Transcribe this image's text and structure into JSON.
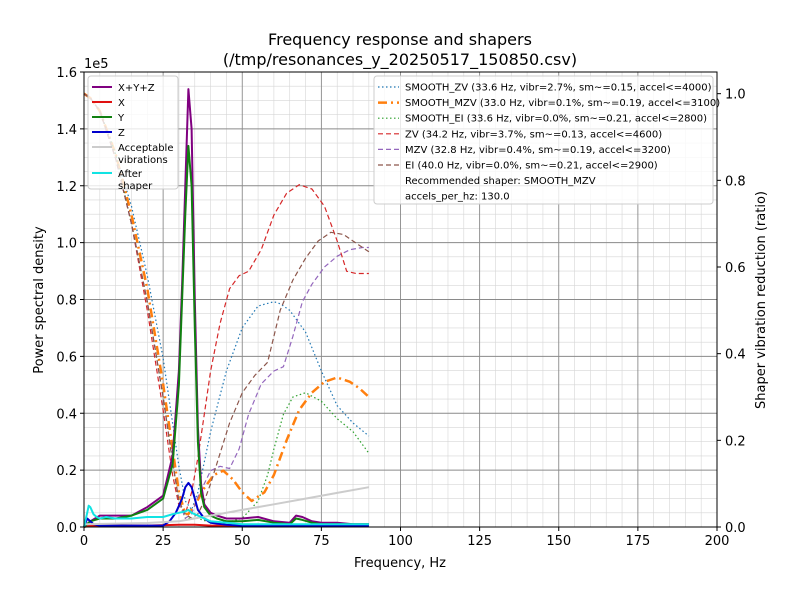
{
  "chart_data": {
    "type": "line",
    "title": "Frequency response and shapers",
    "subtitle": "(/tmp/resonances_y_20250517_150850.csv)",
    "xlabel": "Frequency, Hz",
    "ylabel_left": "Power spectral density",
    "ylabel_right": "Shaper vibration reduction (ratio)",
    "y_exponent_label": "1e5",
    "xlim": [
      0,
      200
    ],
    "ylim_left": [
      0,
      1.6
    ],
    "ylim_right": [
      0,
      1.05
    ],
    "x_ticks": [
      0,
      25,
      50,
      75,
      100,
      125,
      150,
      175,
      200
    ],
    "y_ticks_left": [
      "0.0",
      "0.2",
      "0.4",
      "0.6",
      "0.8",
      "1.0",
      "1.2",
      "1.4",
      "1.6"
    ],
    "y_ticks_right": [
      "0.0",
      "0.2",
      "0.4",
      "0.6",
      "0.8",
      "1.0"
    ],
    "grid": true,
    "legend_left_placement": "top-left",
    "legend_right_placement": "top-right",
    "psd_series": [
      {
        "name": "X+Y+Z",
        "color": "#800080",
        "width": 2,
        "x": [
          0,
          2,
          5,
          10,
          15,
          20,
          25,
          28,
          30,
          31,
          32,
          33.0,
          34,
          35,
          36,
          37,
          38,
          40,
          42,
          45,
          50,
          55,
          60,
          65,
          67,
          69,
          72,
          75,
          80,
          85,
          90
        ],
        "y": [
          0.0,
          0.02,
          0.04,
          0.04,
          0.04,
          0.07,
          0.11,
          0.25,
          0.55,
          0.85,
          1.2,
          1.54,
          1.4,
          0.8,
          0.35,
          0.15,
          0.08,
          0.05,
          0.04,
          0.03,
          0.03,
          0.035,
          0.02,
          0.015,
          0.04,
          0.035,
          0.02,
          0.015,
          0.015,
          0.01,
          0.01
        ]
      },
      {
        "name": "X",
        "color": "#e01010",
        "width": 2,
        "x": [
          0,
          2,
          5,
          10,
          20,
          30,
          35,
          40,
          50,
          60,
          70,
          80,
          90
        ],
        "y": [
          0.0,
          0.005,
          0.005,
          0.005,
          0.005,
          0.008,
          0.008,
          0.005,
          0.005,
          0.005,
          0.005,
          0.005,
          0.005
        ]
      },
      {
        "name": "Y",
        "color": "#108010",
        "width": 2,
        "x": [
          0,
          2,
          5,
          10,
          15,
          20,
          25,
          28,
          30,
          31,
          32,
          33.0,
          34,
          35,
          36,
          37,
          38,
          40,
          42,
          45,
          50,
          55,
          60,
          65,
          67,
          69,
          72,
          75,
          80,
          85,
          90
        ],
        "y": [
          0.0,
          0.02,
          0.03,
          0.03,
          0.04,
          0.06,
          0.1,
          0.22,
          0.5,
          0.8,
          1.1,
          1.34,
          1.2,
          0.7,
          0.3,
          0.12,
          0.07,
          0.04,
          0.03,
          0.02,
          0.02,
          0.025,
          0.015,
          0.01,
          0.03,
          0.025,
          0.015,
          0.01,
          0.01,
          0.01,
          0.01
        ]
      },
      {
        "name": "Z",
        "color": "#0000cc",
        "width": 2,
        "x": [
          0,
          1,
          2,
          3,
          5,
          10,
          20,
          25,
          27,
          29,
          31,
          32,
          33.0,
          34,
          35,
          36,
          38,
          40,
          45,
          50,
          60,
          70,
          80,
          90
        ],
        "y": [
          0.0,
          0.03,
          0.02,
          0.01,
          0.005,
          0.005,
          0.005,
          0.005,
          0.02,
          0.05,
          0.1,
          0.14,
          0.155,
          0.14,
          0.1,
          0.06,
          0.03,
          0.015,
          0.008,
          0.005,
          0.005,
          0.005,
          0.005,
          0.005
        ]
      },
      {
        "name": "Acceptable vibrations",
        "color": "#cccccc",
        "width": 2,
        "x": [
          0,
          10,
          20,
          30,
          40,
          50,
          60,
          70,
          80,
          90
        ],
        "y": [
          0.01,
          0.012,
          0.014,
          0.02,
          0.04,
          0.06,
          0.08,
          0.1,
          0.12,
          0.14
        ]
      },
      {
        "name": "After shaper",
        "color": "#11e3e3",
        "width": 2,
        "x": [
          0,
          1,
          1.5,
          2,
          3,
          4,
          5,
          7,
          10,
          15,
          20,
          25,
          28,
          30,
          32,
          33.0,
          34,
          36,
          40,
          45,
          50,
          60,
          70,
          80,
          90
        ],
        "y": [
          0.0,
          0.05,
          0.075,
          0.07,
          0.045,
          0.035,
          0.03,
          0.035,
          0.03,
          0.03,
          0.035,
          0.035,
          0.045,
          0.05,
          0.055,
          0.06,
          0.05,
          0.04,
          0.02,
          0.015,
          0.01,
          0.01,
          0.01,
          0.01,
          0.01
        ]
      }
    ],
    "shaper_series": [
      {
        "name": "SMOOTH_ZV (33.6 Hz, vibr=2.7%, sm~=0.15, accel<=4000)",
        "color": "#1f77b4",
        "dash": "1.5,2.5",
        "width": 1.2,
        "x": [
          0,
          2,
          5,
          10,
          15,
          20,
          25,
          28,
          30,
          32,
          34,
          36,
          38,
          40,
          45,
          50,
          55,
          60,
          62,
          65,
          70,
          75,
          80,
          85,
          90
        ],
        "y": [
          1.0,
          0.99,
          0.96,
          0.86,
          0.74,
          0.58,
          0.39,
          0.24,
          0.14,
          0.06,
          0.04,
          0.08,
          0.15,
          0.22,
          0.36,
          0.46,
          0.51,
          0.52,
          0.515,
          0.5,
          0.45,
          0.36,
          0.28,
          0.24,
          0.21
        ]
      },
      {
        "name": "SMOOTH_MZV (33.0 Hz, vibr=0.1%, sm~=0.19, accel<=3100)",
        "color": "#ff7f0e",
        "dash": "9,4,2,4",
        "width": 2.5,
        "x": [
          0,
          2,
          5,
          10,
          15,
          20,
          25,
          28,
          30,
          32,
          33,
          35,
          38,
          41,
          44,
          47,
          50,
          53,
          57,
          60,
          64,
          68,
          72,
          76,
          80,
          84,
          87,
          90
        ],
        "y": [
          1.0,
          0.99,
          0.96,
          0.86,
          0.72,
          0.55,
          0.33,
          0.18,
          0.08,
          0.03,
          0.03,
          0.05,
          0.09,
          0.12,
          0.13,
          0.11,
          0.08,
          0.06,
          0.08,
          0.12,
          0.2,
          0.27,
          0.31,
          0.335,
          0.345,
          0.335,
          0.32,
          0.3
        ]
      },
      {
        "name": "SMOOTH_EI (33.6 Hz, vibr=0.0%, sm~=0.21, accel<=2800)",
        "color": "#2ca02c",
        "dash": "1.5,2.5",
        "width": 1.2,
        "x": [
          0,
          2,
          5,
          10,
          15,
          20,
          25,
          28,
          30,
          32,
          34,
          36,
          40,
          45,
          50,
          55,
          58,
          60,
          63,
          66,
          70,
          75,
          80,
          85,
          90
        ],
        "y": [
          1.0,
          0.99,
          0.96,
          0.86,
          0.7,
          0.52,
          0.3,
          0.15,
          0.06,
          0.02,
          0.02,
          0.02,
          0.01,
          0.01,
          0.02,
          0.06,
          0.12,
          0.18,
          0.26,
          0.3,
          0.31,
          0.29,
          0.25,
          0.22,
          0.17
        ]
      },
      {
        "name": "ZV (34.2 Hz, vibr=3.7%, sm~=0.13, accel<=4600)",
        "color": "#d62728",
        "dash": "5,3",
        "width": 1.2,
        "x": [
          0,
          2,
          5,
          10,
          15,
          20,
          25,
          28,
          30,
          32,
          34,
          36,
          38,
          40,
          43,
          46,
          49,
          52,
          56,
          60,
          64,
          68,
          72,
          76,
          80,
          83,
          86,
          90
        ],
        "y": [
          1.0,
          0.99,
          0.96,
          0.85,
          0.7,
          0.5,
          0.27,
          0.12,
          0.05,
          0.03,
          0.08,
          0.16,
          0.26,
          0.36,
          0.47,
          0.55,
          0.58,
          0.59,
          0.64,
          0.72,
          0.77,
          0.79,
          0.78,
          0.74,
          0.66,
          0.59,
          0.585,
          0.585
        ]
      },
      {
        "name": "MZV (32.8 Hz, vibr=0.4%, sm~=0.19, accel<=3200)",
        "color": "#9467bd",
        "dash": "5,3",
        "width": 1.2,
        "x": [
          0,
          2,
          5,
          10,
          15,
          20,
          25,
          28,
          30,
          32,
          34,
          36,
          38,
          40,
          43,
          46,
          49,
          52,
          56,
          60,
          63,
          66,
          69,
          72,
          76,
          80,
          84,
          88,
          90
        ],
        "y": [
          1.0,
          0.99,
          0.96,
          0.85,
          0.7,
          0.52,
          0.3,
          0.15,
          0.06,
          0.02,
          0.03,
          0.07,
          0.1,
          0.13,
          0.14,
          0.135,
          0.18,
          0.26,
          0.33,
          0.36,
          0.37,
          0.44,
          0.52,
          0.56,
          0.6,
          0.625,
          0.64,
          0.645,
          0.645
        ]
      },
      {
        "name": "EI (40.0 Hz, vibr=0.0%, sm~=0.21, accel<=2900)",
        "color": "#8c564b",
        "dash": "5,3",
        "width": 1.2,
        "x": [
          0,
          2,
          5,
          10,
          15,
          20,
          25,
          28,
          30,
          32,
          34,
          36,
          38,
          40,
          43,
          46,
          50,
          54,
          58,
          62,
          66,
          70,
          74,
          78,
          82,
          86,
          90
        ],
        "y": [
          1.0,
          0.99,
          0.96,
          0.85,
          0.7,
          0.52,
          0.3,
          0.15,
          0.06,
          0.03,
          0.02,
          0.03,
          0.06,
          0.1,
          0.17,
          0.24,
          0.31,
          0.35,
          0.38,
          0.5,
          0.57,
          0.62,
          0.66,
          0.68,
          0.675,
          0.655,
          0.635
        ]
      }
    ],
    "legend_extra_lines": [
      "Recommended shaper: SMOOTH_MZV",
      "accels_per_hz: 130.0"
    ]
  }
}
